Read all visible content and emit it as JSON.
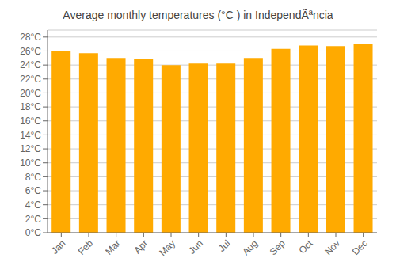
{
  "chart_data": {
    "type": "bar",
    "title": "Average monthly temperatures (°C ) in IndependÃªncia",
    "categories": [
      "Jan",
      "Feb",
      "Mar",
      "Apr",
      "May",
      "Jun",
      "Jul",
      "Aug",
      "Sep",
      "Oct",
      "Nov",
      "Dec"
    ],
    "values": [
      26.0,
      25.7,
      25.0,
      24.8,
      24.0,
      24.2,
      24.2,
      25.0,
      26.3,
      26.8,
      26.7,
      27.0
    ],
    "color": "#FFAA00",
    "ylim": [
      0,
      29
    ],
    "yticks": [
      {
        "value": 0,
        "label": "0°C"
      },
      {
        "value": 2,
        "label": "2°C"
      },
      {
        "value": 4,
        "label": "4°C"
      },
      {
        "value": 6,
        "label": "6°C"
      },
      {
        "value": 8,
        "label": "8°C"
      },
      {
        "value": 10,
        "label": "10°C"
      },
      {
        "value": 12,
        "label": "12°C"
      },
      {
        "value": 14,
        "label": "14°C"
      },
      {
        "value": 16,
        "label": "16°C"
      },
      {
        "value": 18,
        "label": "18°C"
      },
      {
        "value": 20,
        "label": "20°C"
      },
      {
        "value": 22,
        "label": "22°C"
      },
      {
        "value": 24,
        "label": "24°C"
      },
      {
        "value": 26,
        "label": "26°C"
      },
      {
        "value": 28,
        "label": "28°C"
      }
    ],
    "grid": true
  }
}
